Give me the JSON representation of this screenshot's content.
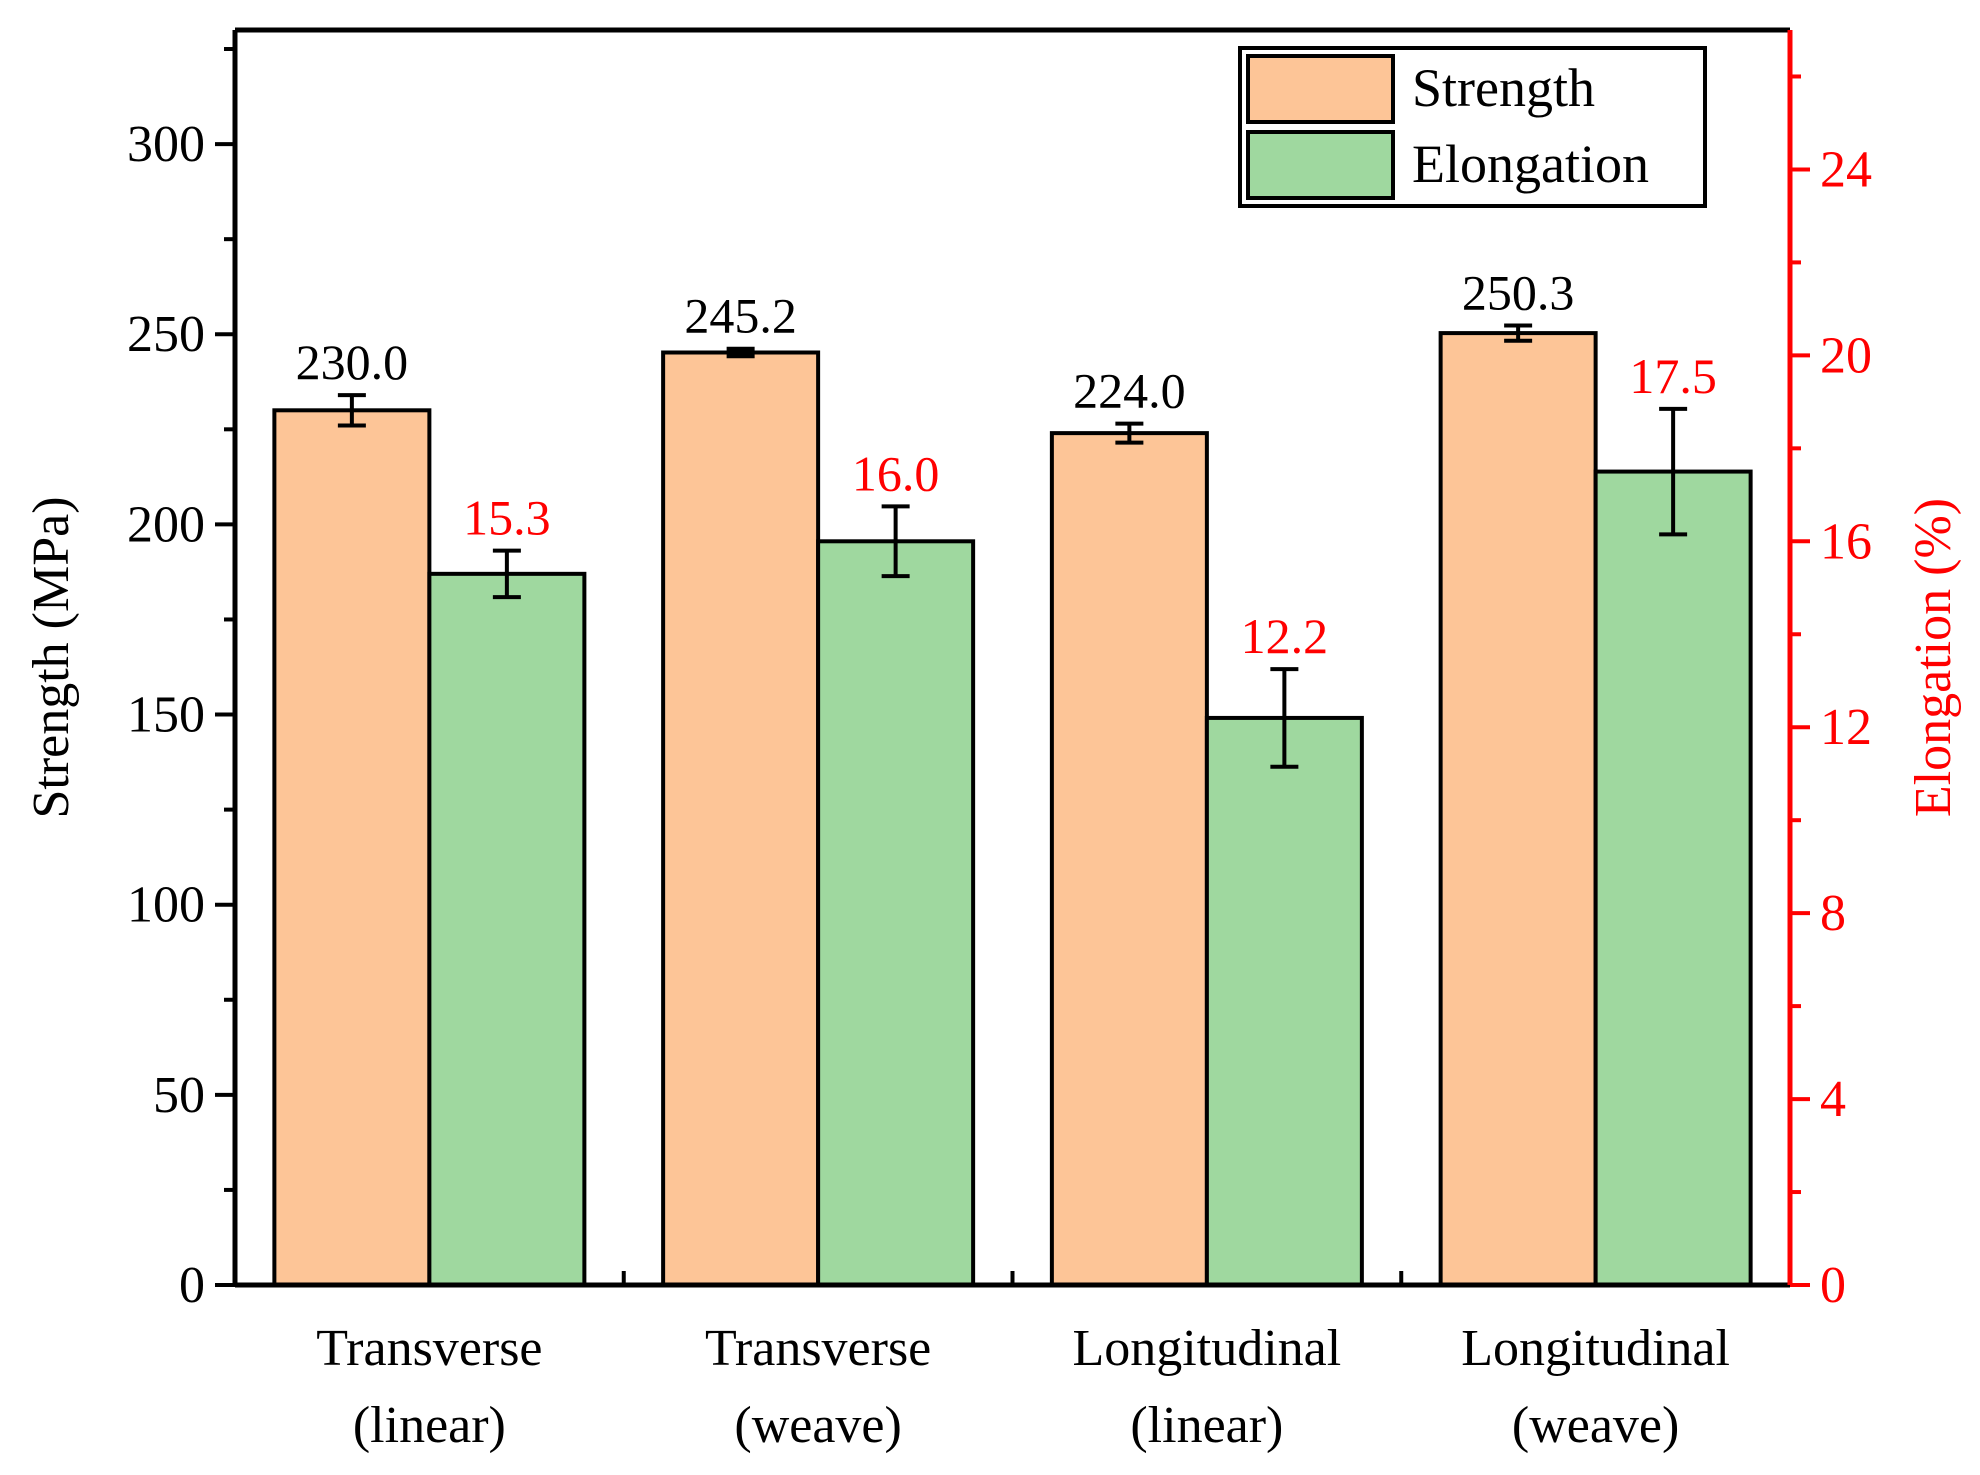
{
  "chart_data": {
    "type": "bar",
    "categories": [
      [
        "Transverse",
        "(linear)"
      ],
      [
        "Transverse",
        "(weave)"
      ],
      [
        "Longitudinal",
        "(linear)"
      ],
      [
        "Longitudinal",
        "(weave)"
      ]
    ],
    "series": [
      {
        "name": "Strength",
        "axis": "left",
        "values": [
          230.0,
          245.2,
          224.0,
          250.3
        ],
        "errors": [
          4,
          1,
          2.5,
          2
        ],
        "labels": [
          "230.0",
          "245.2",
          "224.0",
          "250.3"
        ],
        "color": "#FDC597",
        "label_color": "#000000"
      },
      {
        "name": "Elongation",
        "axis": "right",
        "values": [
          15.3,
          16.0,
          12.2,
          17.5
        ],
        "errors": [
          0.5,
          0.75,
          1.05,
          1.35
        ],
        "labels": [
          "15.3",
          "16.0",
          "12.2",
          "17.5"
        ],
        "color": "#9FD89F",
        "label_color": "#FF0000"
      }
    ],
    "ylabel": "Strength (MPa)",
    "y2label": "Elongation (%)",
    "ylim": [
      0,
      330
    ],
    "y2lim": [
      0,
      27
    ],
    "yticks": [
      0,
      50,
      100,
      150,
      200,
      250,
      300
    ],
    "y2ticks": [
      0,
      4,
      8,
      12,
      16,
      20,
      24
    ],
    "y_minor_step": 25,
    "y2_minor_step": 2,
    "legend_position": "top-right",
    "grid": false,
    "axis_color": "#000000",
    "y2_axis_color": "#FF0000"
  }
}
